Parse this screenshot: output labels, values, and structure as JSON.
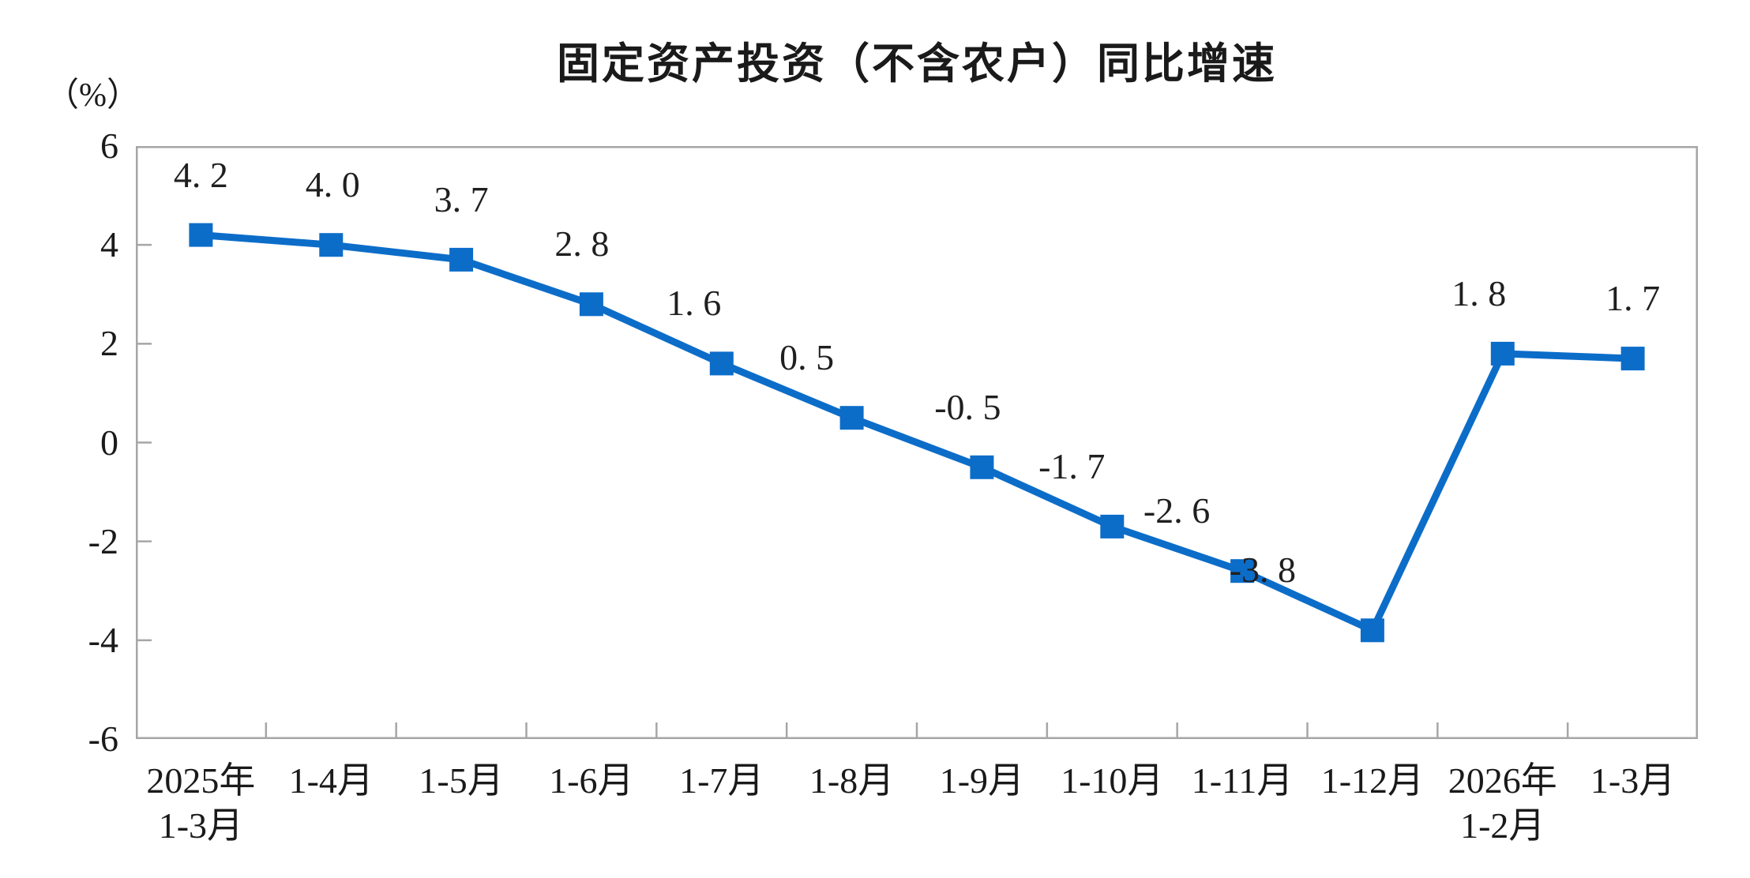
{
  "chart_data": {
    "type": "line",
    "title": "固定资产投资（不含农户）同比增速",
    "unit_label": "（%）",
    "categories": [
      {
        "line1": "2025年",
        "line2": "1-3月"
      },
      {
        "line1": "1-4月"
      },
      {
        "line1": "1-5月"
      },
      {
        "line1": "1-6月"
      },
      {
        "line1": "1-7月"
      },
      {
        "line1": "1-8月"
      },
      {
        "line1": "1-9月"
      },
      {
        "line1": "1-10月"
      },
      {
        "line1": "1-11月"
      },
      {
        "line1": "1-12月"
      },
      {
        "line1": "2026年",
        "line2": "1-2月"
      },
      {
        "line1": "1-3月"
      }
    ],
    "values": [
      4.2,
      4.0,
      3.7,
      2.8,
      1.6,
      0.5,
      -0.5,
      -1.7,
      -2.6,
      -3.8,
      1.8,
      1.7
    ],
    "point_labels": [
      "4. 2",
      "4. 0",
      "3. 7",
      "2. 8",
      "1. 6",
      "0. 5",
      "-0. 5",
      "-1. 7",
      "-2. 6",
      "-3. 8",
      "1. 8",
      "1. 7"
    ],
    "ylim": [
      -6,
      6
    ],
    "yticks": [
      6,
      4,
      2,
      0,
      -2,
      -4,
      -6
    ],
    "grid": "off",
    "legend": "none",
    "line_color": "#0c6dc9",
    "axis_color": "#a6a6a6",
    "text_color": "#1a1a1a"
  }
}
